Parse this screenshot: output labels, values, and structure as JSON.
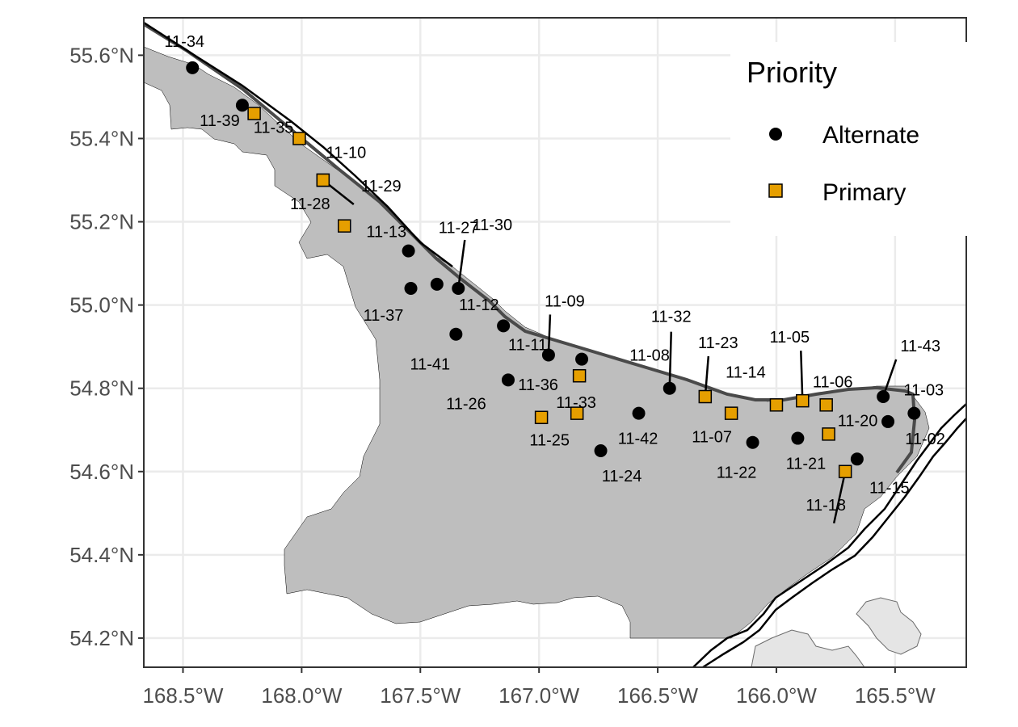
{
  "map": {
    "x_ticks": [
      {
        "lon": -168.5,
        "label": "168.5°W"
      },
      {
        "lon": -168.0,
        "label": "168.0°W"
      },
      {
        "lon": -167.5,
        "label": "167.5°W"
      },
      {
        "lon": -167.0,
        "label": "167.0°W"
      },
      {
        "lon": -166.5,
        "label": "166.5°W"
      },
      {
        "lon": -166.0,
        "label": "166.0°W"
      },
      {
        "lon": -165.5,
        "label": "165.5°W"
      }
    ],
    "y_ticks": [
      {
        "lat": 55.6,
        "label": "55.6°N"
      },
      {
        "lat": 55.4,
        "label": "55.4°N"
      },
      {
        "lat": 55.2,
        "label": "55.2°N"
      },
      {
        "lat": 55.0,
        "label": "55.0°N"
      },
      {
        "lat": 54.8,
        "label": "54.8°N"
      },
      {
        "lat": 54.6,
        "label": "54.6°N"
      },
      {
        "lat": 54.4,
        "label": "54.4°N"
      },
      {
        "lat": 54.2,
        "label": "54.2°N"
      }
    ],
    "lon_range": [
      -168.665,
      -165.2
    ],
    "lat_range": [
      54.13,
      55.69
    ]
  },
  "legend": {
    "title": "Priority",
    "items": [
      {
        "label": "Alternate",
        "shape": "circle",
        "color": "#000000"
      },
      {
        "label": "Primary",
        "shape": "square",
        "color": "#E69F00"
      }
    ]
  },
  "colors": {
    "region_fill": "#bebebe",
    "panel_border": "#333333",
    "grid": "#ebebeb",
    "primary": "#E69F00",
    "alternate": "#000000",
    "island_fill": "#e5e5e5"
  },
  "stations": [
    {
      "id": "11-34",
      "priority": "Alternate",
      "lon": -168.46,
      "lat": 55.57
    },
    {
      "id": "11-39",
      "priority": "Alternate",
      "lon": -168.25,
      "lat": 55.48
    },
    {
      "id": "11-35",
      "priority": "Primary",
      "lon": -168.2,
      "lat": 55.46
    },
    {
      "id": "11-10",
      "priority": "Primary",
      "lon": -168.01,
      "lat": 55.4
    },
    {
      "id": "11-29",
      "priority": "Primary",
      "lon": -167.91,
      "lat": 55.3
    },
    {
      "id": "11-28",
      "priority": "Primary",
      "lon": -167.91,
      "lat": 55.3
    },
    {
      "id": "11-13",
      "priority": "Primary",
      "lon": -167.82,
      "lat": 55.19
    },
    {
      "id": "11-27",
      "priority": "Alternate",
      "lon": -167.55,
      "lat": 55.13
    },
    {
      "id": "11-37",
      "priority": "Alternate",
      "lon": -167.54,
      "lat": 55.04
    },
    {
      "id": "11-12",
      "priority": "Alternate",
      "lon": -167.43,
      "lat": 55.05
    },
    {
      "id": "11-30",
      "priority": "Alternate",
      "lon": -167.34,
      "lat": 55.04
    },
    {
      "id": "11-41",
      "priority": "Alternate",
      "lon": -167.35,
      "lat": 54.93
    },
    {
      "id": "11-11",
      "priority": "Alternate",
      "lon": -167.15,
      "lat": 54.95
    },
    {
      "id": "11-26",
      "priority": "Alternate",
      "lon": -167.13,
      "lat": 54.82
    },
    {
      "id": "11-09",
      "priority": "Alternate",
      "lon": -166.96,
      "lat": 54.88
    },
    {
      "id": "11-36",
      "priority": "Primary",
      "lon": -166.99,
      "lat": 54.73
    },
    {
      "id": "11-25",
      "priority": "Primary",
      "lon": -166.84,
      "lat": 54.74
    },
    {
      "id": "11-33",
      "priority": "Primary",
      "lon": -166.83,
      "lat": 54.83
    },
    {
      "id": "11-24",
      "priority": "Alternate",
      "lon": -166.74,
      "lat": 54.65
    },
    {
      "id": "11-08",
      "priority": "Alternate",
      "lon": -166.82,
      "lat": 54.87
    },
    {
      "id": "11-42",
      "priority": "Alternate",
      "lon": -166.58,
      "lat": 54.74
    },
    {
      "id": "11-32",
      "priority": "Alternate",
      "lon": -166.45,
      "lat": 54.8
    },
    {
      "id": "11-07",
      "priority": "Primary",
      "lon": -166.19,
      "lat": 54.74
    },
    {
      "id": "11-23",
      "priority": "Primary",
      "lon": -166.3,
      "lat": 54.78
    },
    {
      "id": "11-22",
      "priority": "Alternate",
      "lon": -166.1,
      "lat": 54.67
    },
    {
      "id": "11-14",
      "priority": "Primary",
      "lon": -166.0,
      "lat": 54.76
    },
    {
      "id": "11-05",
      "priority": "Primary",
      "lon": -165.89,
      "lat": 54.77
    },
    {
      "id": "11-21",
      "priority": "Alternate",
      "lon": -165.91,
      "lat": 54.68
    },
    {
      "id": "11-06",
      "priority": "Primary",
      "lon": -165.79,
      "lat": 54.76
    },
    {
      "id": "11-20",
      "priority": "Primary",
      "lon": -165.78,
      "lat": 54.69
    },
    {
      "id": "11-18",
      "priority": "Primary",
      "lon": -165.71,
      "lat": 54.6
    },
    {
      "id": "11-15",
      "priority": "Alternate",
      "lon": -165.66,
      "lat": 54.63
    },
    {
      "id": "11-43",
      "priority": "Alternate",
      "lon": -165.55,
      "lat": 54.78
    },
    {
      "id": "11-02",
      "priority": "Alternate",
      "lon": -165.53,
      "lat": 54.72
    },
    {
      "id": "11-03",
      "priority": "Alternate",
      "lon": -165.42,
      "lat": 54.74
    }
  ]
}
